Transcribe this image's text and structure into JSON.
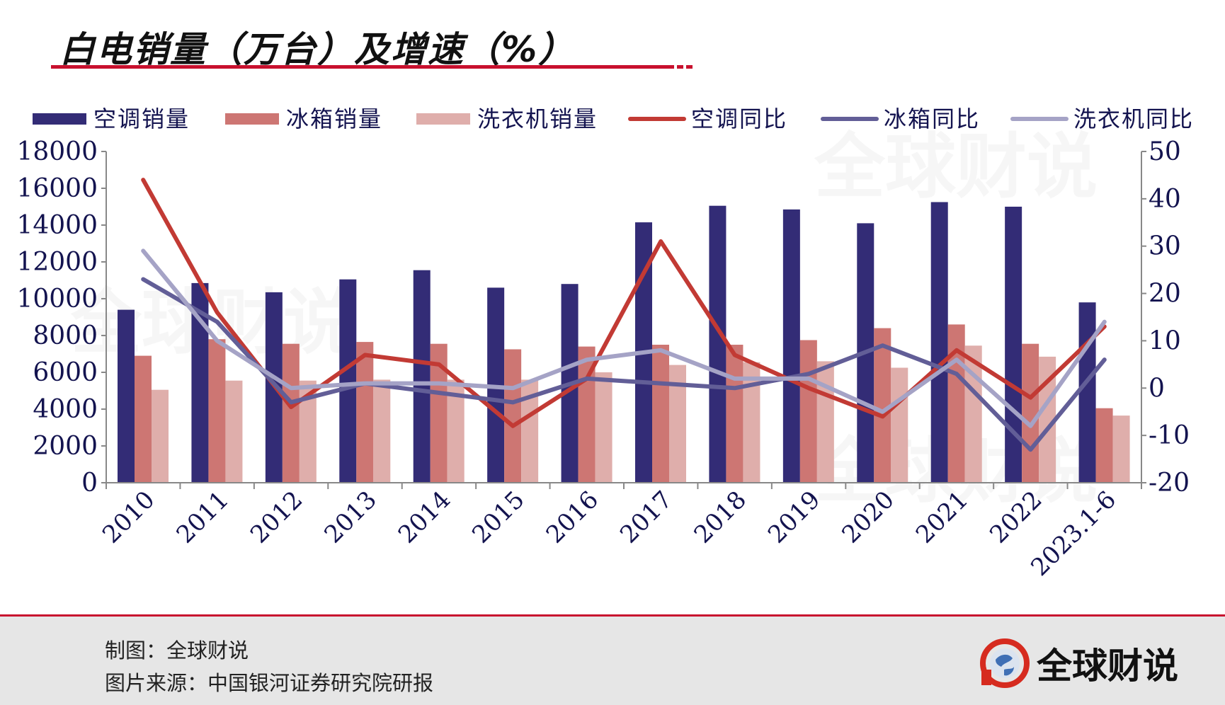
{
  "header": {
    "title": "白电销量（万台）及增速（%）"
  },
  "footer": {
    "credit": "制图：全球财说",
    "source": "图片来源：中国银河证券研究院研报",
    "brand": "全球财说"
  },
  "colors": {
    "ac_bar": "#332c76",
    "fridge_bar": "#cd7673",
    "washer_bar": "#dfaeab",
    "ac_line": "#c23a34",
    "fridge_line": "#625e97",
    "washer_line": "#a5a3c6",
    "accent": "#c8102e"
  },
  "chart_data": {
    "type": "bar",
    "categories": [
      "2010",
      "2011",
      "2012",
      "2013",
      "2014",
      "2015",
      "2016",
      "2017",
      "2018",
      "2019",
      "2020",
      "2021",
      "2022",
      "2023.1-6"
    ],
    "ylim": [
      0,
      18000
    ],
    "y2lim": [
      -20,
      50
    ],
    "yticks": [
      "0",
      "2000",
      "4000",
      "6000",
      "8000",
      "10000",
      "12000",
      "14000",
      "16000",
      "18000"
    ],
    "y2ticks": [
      "-20",
      "-10",
      "0",
      "10",
      "20",
      "30",
      "40",
      "50"
    ],
    "series": [
      {
        "name": "空调销量",
        "kind": "bar",
        "axis": "left",
        "values": [
          9400,
          10850,
          10350,
          11050,
          11550,
          10600,
          10800,
          14150,
          15050,
          14850,
          14100,
          15250,
          15000,
          9800
        ]
      },
      {
        "name": "冰箱销量",
        "kind": "bar",
        "axis": "left",
        "values": [
          6900,
          7800,
          7550,
          7650,
          7550,
          7250,
          7400,
          7500,
          7500,
          7750,
          8400,
          8600,
          7550,
          4050
        ]
      },
      {
        "name": "洗衣机销量",
        "kind": "bar",
        "axis": "left",
        "values": [
          5050,
          5550,
          5550,
          5600,
          5600,
          5600,
          6000,
          6400,
          6550,
          6600,
          6250,
          7450,
          6850,
          3650
        ]
      },
      {
        "name": "空调同比",
        "kind": "line",
        "axis": "right",
        "values": [
          44,
          16,
          -4,
          7,
          5,
          -8,
          2,
          31,
          7,
          0,
          -6,
          8,
          -2,
          13
        ]
      },
      {
        "name": "冰箱同比",
        "kind": "line",
        "axis": "right",
        "values": [
          23,
          14,
          -3,
          1,
          -1,
          -3,
          2,
          1,
          0,
          3,
          9,
          3,
          -13,
          6
        ]
      },
      {
        "name": "洗衣机同比",
        "kind": "line",
        "axis": "right",
        "values": [
          29,
          10,
          0,
          1,
          1,
          0,
          6,
          8,
          2,
          2,
          -5,
          6,
          -8,
          14
        ]
      }
    ],
    "legend_position": "top",
    "grid": false,
    "watermark": "全球财说"
  }
}
